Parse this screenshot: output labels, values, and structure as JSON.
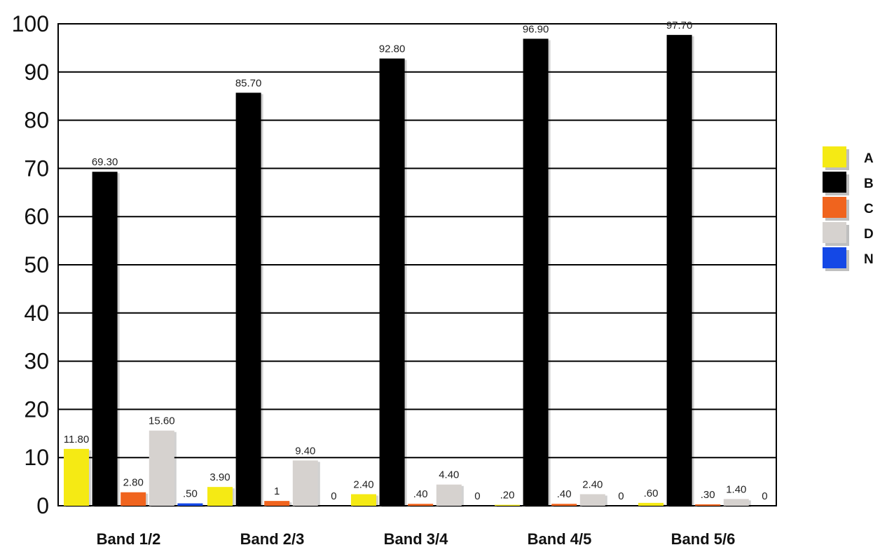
{
  "chart_data": {
    "type": "bar",
    "title": "",
    "xlabel": "",
    "ylabel": "",
    "ylim": [
      0,
      100
    ],
    "yticks": [
      "0",
      "10",
      "20",
      "30",
      "40",
      "50",
      "60",
      "70",
      "80",
      "90",
      "100"
    ],
    "grid": true,
    "legend_position": "right",
    "categories": [
      "Band 1/2",
      "Band 2/3",
      "Band 3/4",
      "Band 4/5",
      "Band 5/6"
    ],
    "series": [
      {
        "name": "A",
        "color": "#f5ea14",
        "values": [
          11.8,
          3.9,
          2.4,
          0.2,
          0.6
        ],
        "labels": [
          "11.80",
          "3.90",
          "2.40",
          ".20",
          ".60"
        ]
      },
      {
        "name": "B",
        "color": "#000000",
        "values": [
          69.3,
          85.7,
          92.8,
          96.9,
          97.7
        ],
        "labels": [
          "69.30",
          "85.70",
          "92.80",
          "96.90",
          "97.70"
        ]
      },
      {
        "name": "C",
        "color": "#f0641e",
        "values": [
          2.8,
          1,
          0.4,
          0.4,
          0.3
        ],
        "labels": [
          "2.80",
          "1",
          ".40",
          ".40",
          ".30"
        ]
      },
      {
        "name": "D",
        "color": "#d6d2cf",
        "values": [
          15.6,
          9.4,
          4.4,
          2.4,
          1.4
        ],
        "labels": [
          "15.60",
          "9.40",
          "4.40",
          "2.40",
          "1.40"
        ]
      },
      {
        "name": "N",
        "color": "#1448e6",
        "values": [
          0.5,
          0,
          0,
          0,
          0
        ],
        "labels": [
          ".50",
          "0",
          "0",
          "0",
          "0"
        ]
      }
    ]
  }
}
